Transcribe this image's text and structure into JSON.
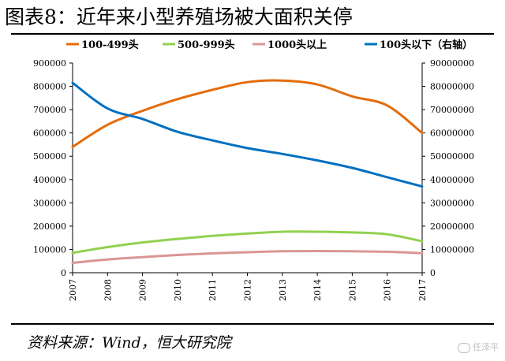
{
  "title": "图表8：近年来小型养殖场被大面积关停",
  "source": "资料来源：Wind，恒大研究院",
  "watermark": "任泽平",
  "chart_data": {
    "type": "line",
    "title": "图表8：近年来小型养殖场被大面积关停",
    "categories": [
      "2007",
      "2008",
      "2009",
      "2010",
      "2011",
      "2012",
      "2013",
      "2014",
      "2015",
      "2016",
      "2017"
    ],
    "series": [
      {
        "name": "100-499头",
        "axis": "left",
        "color": "#e46c0a",
        "values": [
          540000,
          635000,
          695000,
          745000,
          785000,
          818000,
          825000,
          808000,
          757000,
          718000,
          600000
        ]
      },
      {
        "name": "500-999头",
        "axis": "left",
        "color": "#92d050",
        "values": [
          85000,
          110000,
          130000,
          145000,
          158000,
          168000,
          176000,
          176000,
          173000,
          165000,
          135000
        ]
      },
      {
        "name": "1000头以上",
        "axis": "left",
        "color": "#d99694",
        "values": [
          42000,
          57000,
          67000,
          76000,
          83000,
          88000,
          92000,
          93000,
          92000,
          90000,
          84000
        ]
      },
      {
        "name": "100头以下（右轴）",
        "axis": "right",
        "color": "#0070c0",
        "values": [
          81500000,
          70500000,
          66000000,
          60500000,
          56800000,
          53500000,
          51000000,
          48200000,
          45000000,
          41000000,
          37000000
        ]
      }
    ],
    "y_left": {
      "min": 0,
      "max": 900000,
      "step": 100000,
      "ticks": [
        "0",
        "100000",
        "200000",
        "300000",
        "400000",
        "500000",
        "600000",
        "700000",
        "800000",
        "900000"
      ]
    },
    "y_right": {
      "min": 0,
      "max": 90000000,
      "step": 10000000,
      "ticks": [
        "0",
        "10000000",
        "20000000",
        "30000000",
        "40000000",
        "50000000",
        "60000000",
        "70000000",
        "80000000",
        "90000000"
      ]
    },
    "grid": false,
    "legend_position": "top"
  }
}
